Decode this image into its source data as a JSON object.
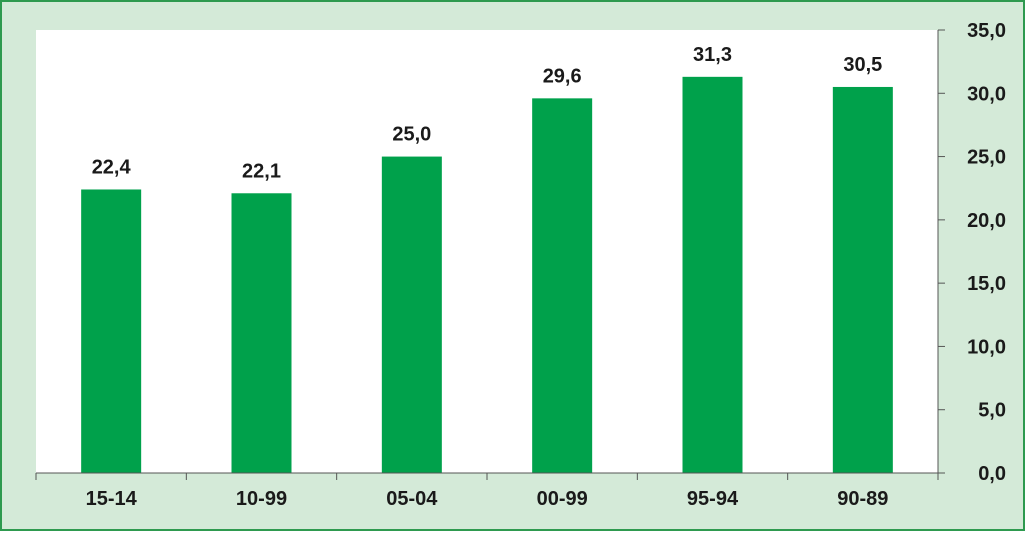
{
  "chart_data": {
    "type": "bar",
    "categories": [
      "15-14",
      "10-99",
      "05-04",
      "00-99",
      "95-94",
      "90-89"
    ],
    "values": [
      22.4,
      22.1,
      25.0,
      29.6,
      31.3,
      30.5
    ],
    "value_labels": [
      "22,4",
      "22,1",
      "25,0",
      "29,6",
      "31,3",
      "30,5"
    ],
    "y_ticks": [
      "0,0",
      "5,0",
      "10,0",
      "15,0",
      "20,0",
      "25,0",
      "30,0",
      "35,0"
    ],
    "ylim": [
      0,
      35
    ],
    "y_axis_side": "right",
    "grid": false,
    "title": "",
    "xlabel": "",
    "ylabel": "",
    "colors": {
      "bar": "#00a14b",
      "plot_background": "#ffffff",
      "frame_background": "#d4ead8",
      "frame_border": "#2e9a4f",
      "axis": "#555555",
      "text": "#1a1a1a"
    }
  }
}
